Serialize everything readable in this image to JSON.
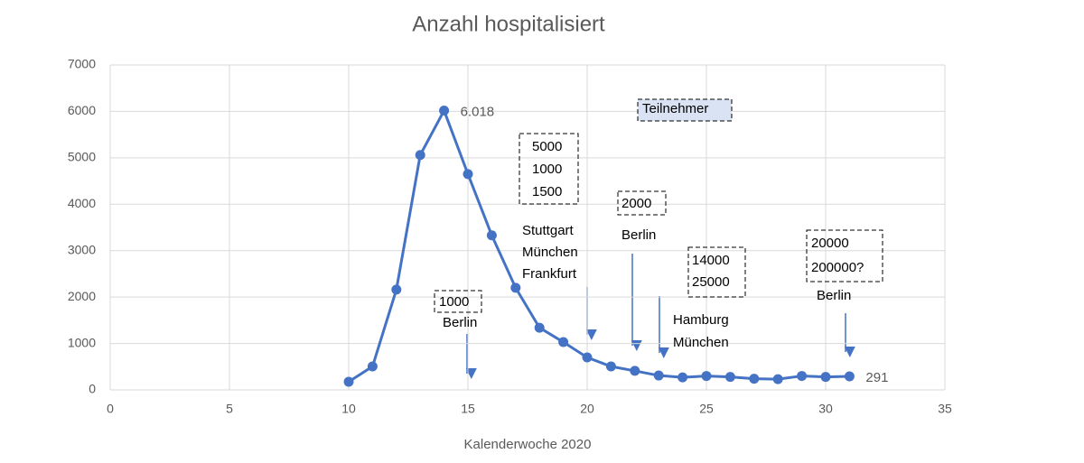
{
  "chart_data": {
    "type": "line",
    "title": "Anzahl hospitalisiert",
    "x_label": "Kalenderwoche 2020",
    "x": [
      10,
      11,
      12,
      13,
      14,
      15,
      16,
      17,
      18,
      19,
      20,
      21,
      22,
      23,
      24,
      25,
      26,
      27,
      28,
      29,
      30,
      31
    ],
    "series": [
      {
        "name": "Anzahl hospitalisiert",
        "color": "#4472c4",
        "values": [
          175,
          505,
          2160,
          5060,
          6018,
          4650,
          3330,
          2200,
          1340,
          1030,
          700,
          505,
          410,
          310,
          270,
          300,
          280,
          240,
          230,
          300,
          280,
          291
        ],
        "value_labels": [
          null,
          null,
          null,
          null,
          "6.018",
          null,
          null,
          null,
          null,
          null,
          null,
          null,
          null,
          null,
          null,
          null,
          null,
          null,
          null,
          null,
          null,
          "291"
        ]
      }
    ],
    "xlim": [
      0,
      35
    ],
    "xticks": [
      0,
      5,
      10,
      15,
      20,
      25,
      30,
      35
    ],
    "ylim": [
      0,
      7000
    ],
    "yticks": [
      0,
      1000,
      2000,
      3000,
      4000,
      5000,
      6000,
      7000
    ],
    "grid": true,
    "annotations": [
      [
        "Teilnehmer"
      ],
      [
        "5000",
        "1000",
        "1500"
      ],
      [
        "Stuttgart",
        "München",
        "Frankfurt"
      ],
      [
        "1000"
      ],
      [
        "Berlin"
      ],
      [
        "2000"
      ],
      [
        "Berlin"
      ],
      [
        "14000",
        "25000"
      ],
      [
        "Hamburg",
        "München"
      ],
      [
        "20000",
        "200000?"
      ],
      [
        "Berlin"
      ]
    ]
  }
}
